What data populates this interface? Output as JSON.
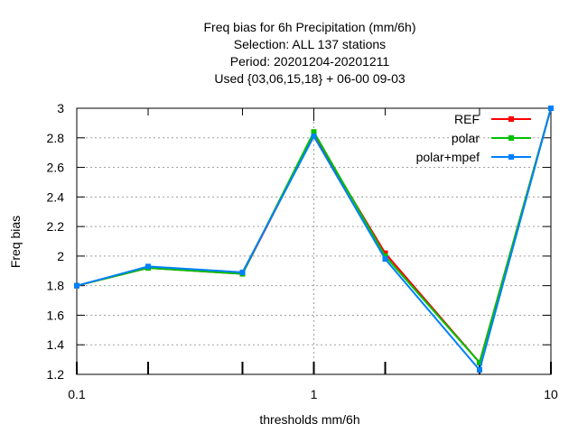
{
  "chart_data": {
    "type": "line",
    "title_lines": [
      "Freq bias  for 6h Precipitation (mm/6h)",
      "Selection: ALL    137 stations",
      "Period: 20201204-20201211",
      "Used {03,06,15,18} + 06-00 09-03"
    ],
    "xlabel": "thresholds mm/6h",
    "ylabel": "Freq bias",
    "x_scale": "log",
    "xlim": [
      0.1,
      10
    ],
    "ylim": [
      1.2,
      3.0
    ],
    "x_ticks": [
      {
        "value": 0.1,
        "label": "0.1"
      },
      {
        "value": 1,
        "label": "1"
      },
      {
        "value": 10,
        "label": "10"
      }
    ],
    "x_minor_ticks": [
      0.2,
      0.5,
      2,
      5
    ],
    "y_ticks": [
      {
        "value": 1.2,
        "label": "1.2"
      },
      {
        "value": 1.4,
        "label": "1.4"
      },
      {
        "value": 1.6,
        "label": "1.6"
      },
      {
        "value": 1.8,
        "label": "1.8"
      },
      {
        "value": 2.0,
        "label": "2"
      },
      {
        "value": 2.2,
        "label": "2.2"
      },
      {
        "value": 2.4,
        "label": "2.4"
      },
      {
        "value": 2.6,
        "label": "2.6"
      },
      {
        "value": 2.8,
        "label": "2.8"
      },
      {
        "value": 3.0,
        "label": "3"
      }
    ],
    "grid": true,
    "legend_position": "top-right",
    "x": [
      0.1,
      0.2,
      0.5,
      1,
      2,
      5,
      10
    ],
    "series": [
      {
        "name": "REF",
        "color": "#ff0000",
        "values": [
          1.8,
          1.92,
          1.88,
          2.82,
          2.02,
          1.28,
          3.0
        ]
      },
      {
        "name": "polar",
        "color": "#00c000",
        "values": [
          1.8,
          1.92,
          1.88,
          2.84,
          2.0,
          1.28,
          3.0
        ]
      },
      {
        "name": "polar+mpef",
        "color": "#0080ff",
        "values": [
          1.8,
          1.93,
          1.89,
          2.81,
          1.98,
          1.23,
          3.0
        ]
      }
    ]
  }
}
